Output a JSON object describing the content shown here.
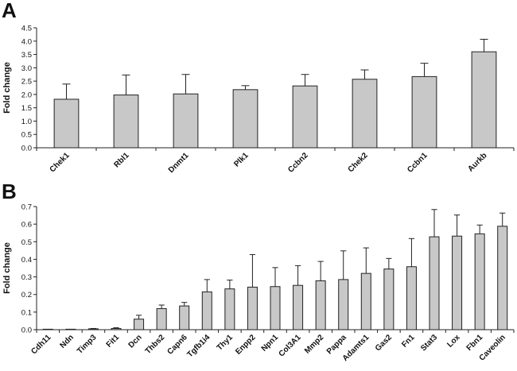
{
  "panels": {
    "a_label": "A",
    "b_label": "B"
  },
  "chart_data": [
    {
      "type": "bar",
      "title": "",
      "xlabel": "",
      "ylabel": "Fold change",
      "ylim": [
        0,
        4.5
      ],
      "yticks": [
        "0.0",
        "0.5",
        "1.0",
        "1.5",
        "2.0",
        "2.5",
        "3.0",
        "3.5",
        "4.0",
        "4.5"
      ],
      "ytick_values": [
        0,
        0.5,
        1.0,
        1.5,
        2.0,
        2.5,
        3.0,
        3.5,
        4.0,
        4.5
      ],
      "categories": [
        "Chek1",
        "Rbl1",
        "Dnmt1",
        "Plk1",
        "Ccbn2",
        "Chek2",
        "Ccbn1",
        "Aurkb"
      ],
      "values": [
        1.82,
        1.98,
        2.02,
        2.18,
        2.32,
        2.57,
        2.67,
        3.6
      ],
      "errors": [
        0.57,
        0.75,
        0.73,
        0.15,
        0.43,
        0.35,
        0.5,
        0.47
      ],
      "grid": false,
      "bar_color": "#c8c8c8"
    },
    {
      "type": "bar",
      "title": "",
      "xlabel": "",
      "ylabel": "Fold change",
      "ylim": [
        0,
        0.7
      ],
      "yticks": [
        "0.0",
        "0.1",
        "0.2",
        "0.3",
        "0.4",
        "0.5",
        "0.6",
        "0.7"
      ],
      "ytick_values": [
        0,
        0.1,
        0.2,
        0.3,
        0.4,
        0.5,
        0.6,
        0.7
      ],
      "categories": [
        "Cdh11",
        "Ndn",
        "Timp3",
        "Fit1",
        "Dcn",
        "Thbs2",
        "Capn6",
        "Tgfb1i4",
        "Thy1",
        "Enpp2",
        "Npn1",
        "Col3A1",
        "Mmp2",
        "Pappa",
        "Adamts1",
        "Gas2",
        "Fn1",
        "Stat3",
        "Lox",
        "Fbn1",
        "Caveolin"
      ],
      "values": [
        0.0,
        0.0,
        0.005,
        0.007,
        0.06,
        0.12,
        0.135,
        0.215,
        0.232,
        0.242,
        0.245,
        0.252,
        0.278,
        0.285,
        0.32,
        0.345,
        0.358,
        0.528,
        0.532,
        0.545,
        0.588
      ],
      "errors": [
        0.001,
        0.001,
        0.002,
        0.004,
        0.022,
        0.02,
        0.02,
        0.07,
        0.05,
        0.185,
        0.108,
        0.112,
        0.11,
        0.163,
        0.145,
        0.06,
        0.16,
        0.155,
        0.12,
        0.05,
        0.075
      ],
      "grid": false,
      "bar_color": "#c8c8c8"
    }
  ]
}
